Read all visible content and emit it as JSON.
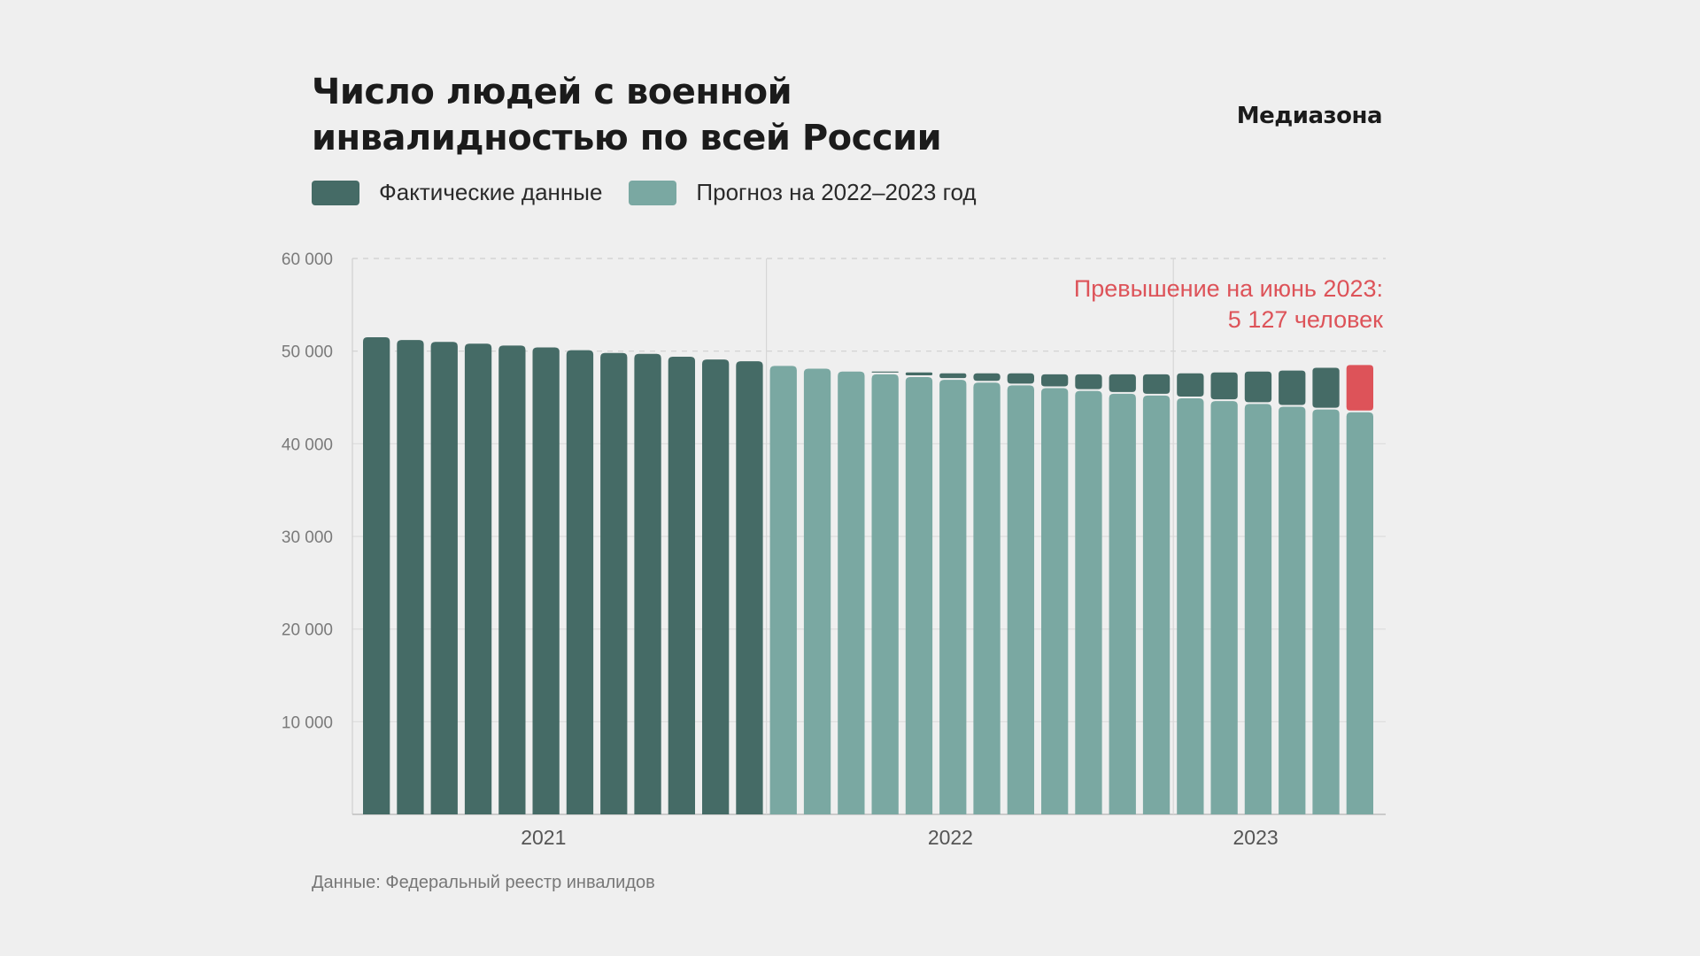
{
  "title_lines": [
    "Число людей с военной",
    "инвалидностью по всей России"
  ],
  "brand": "Медиазона",
  "legend": [
    {
      "label": "Фактические данные",
      "color": "#456b66"
    },
    {
      "label": "Прогноз на 2022–2023 год",
      "color": "#7aa8a2"
    }
  ],
  "source": "Данные: Федеральный реестр инвалидов",
  "chart_data": {
    "type": "bar",
    "yticks": [
      "60 000",
      "50 000",
      "40 000",
      "30 000",
      "20 000",
      "10 000"
    ],
    "ylim": [
      0,
      60000
    ],
    "year_labels": [
      "2021",
      "2022",
      "2023"
    ],
    "colors": {
      "actual": "#456b66",
      "forecast": "#7aa8a2",
      "highlight": "#dd5359"
    },
    "annotation": [
      "Превышение на июнь 2023:",
      "5 127 человек"
    ],
    "series": [
      {
        "name": "Фактические данные",
        "values": [
          51500,
          51200,
          51000,
          50800,
          50600,
          50400,
          50100,
          49800,
          49700,
          49400,
          49100,
          48900,
          48200,
          48000,
          47600,
          47800,
          47700,
          47600,
          47600,
          47600,
          47500,
          47500,
          47500,
          47500,
          47600,
          47700,
          47800,
          47900,
          48200,
          48500
        ]
      },
      {
        "name": "Прогноз на 2022–2023 год",
        "values": [
          null,
          null,
          null,
          null,
          null,
          null,
          null,
          null,
          null,
          null,
          null,
          null,
          48400,
          48100,
          47800,
          47500,
          47200,
          46900,
          46600,
          46300,
          46000,
          45700,
          45400,
          45200,
          44900,
          44600,
          44300,
          44000,
          43700,
          43400
        ]
      }
    ]
  }
}
